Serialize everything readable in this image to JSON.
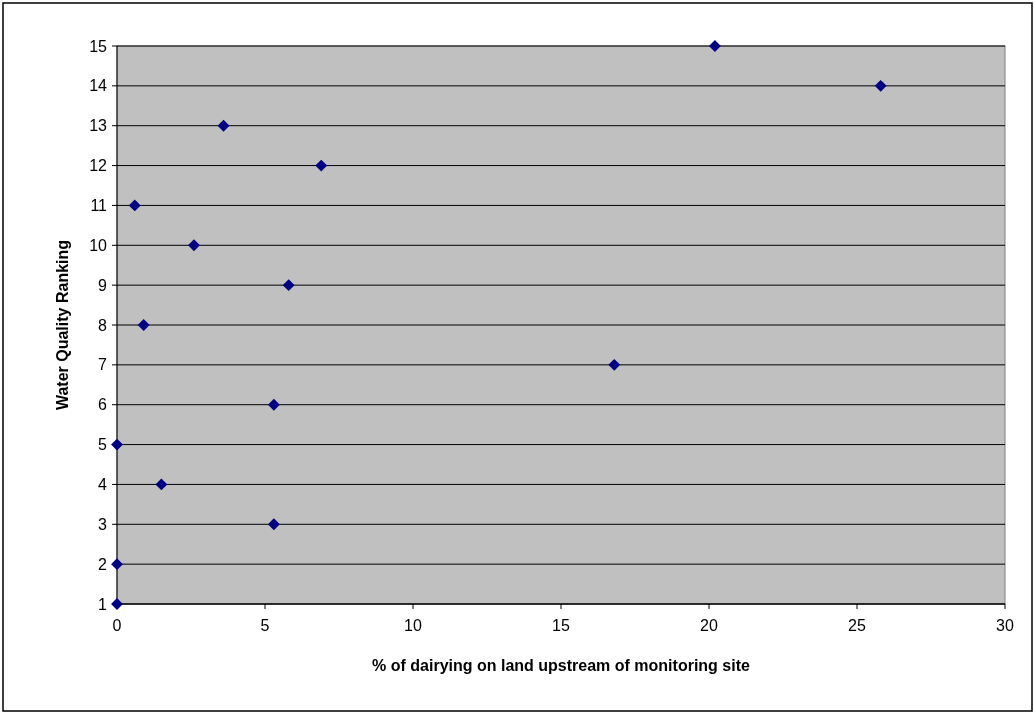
{
  "chart_data": {
    "type": "scatter",
    "xlabel": "% of dairying on land upstream of monitoring site",
    "ylabel": "Water Quality Ranking",
    "x": [
      20.2,
      25.8,
      3.6,
      6.9,
      0.6,
      2.6,
      5.8,
      0.9,
      16.8,
      5.3,
      0,
      1.5,
      5.3,
      0,
      0
    ],
    "series": [
      {
        "color": "#000080",
        "values": [
          15,
          14,
          13,
          12,
          11,
          10,
          9,
          8,
          7,
          6,
          5,
          4,
          3,
          2,
          1
        ]
      }
    ],
    "xlim": [
      0,
      30
    ],
    "xticks": [
      0,
      5,
      10,
      15,
      20,
      25,
      30
    ],
    "ylim": [
      1,
      15
    ],
    "yticks": [
      1,
      2,
      3,
      4,
      5,
      6,
      7,
      8,
      9,
      10,
      11,
      12,
      13,
      14,
      15
    ],
    "grid": "y",
    "marker": "diamond"
  }
}
